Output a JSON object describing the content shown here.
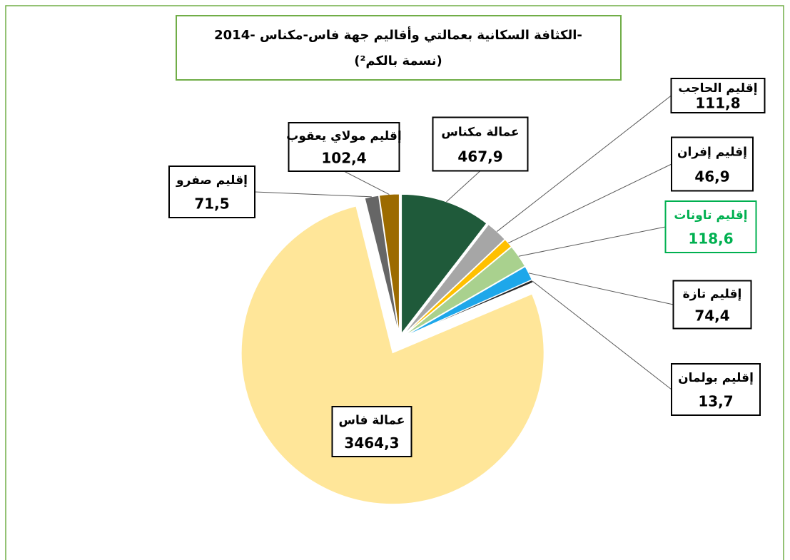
{
  "chart_data": {
    "type": "pie",
    "title": "الكثافة السكانية بعمالتي وأقاليم جهة فاس-مكناس -2014-",
    "subtitle": "(نسمة بالكم²)",
    "categories": [
      "عمالة مكناس",
      "إقليم الحاجب",
      "إقليم إفران",
      "إقليم تاونات",
      "إقليم تازة",
      "إقليم بولمان",
      "عمالة فاس",
      "إقليم صفرو",
      "إقليم مولاي يعقوب"
    ],
    "values": [
      467.9,
      111.8,
      46.9,
      118.6,
      74.4,
      13.7,
      3464.3,
      71.5,
      102.4
    ],
    "value_labels": [
      "467,9",
      "111,8",
      "46,9",
      "118,6",
      "74,4",
      "13,7",
      "3464,3",
      "71,5",
      "102,4"
    ],
    "colors": [
      "#1f5a3a",
      "#a6a6a6",
      "#ffc000",
      "#a9d18e",
      "#1ea7ea",
      "#262626",
      "#ffe699",
      "#666666",
      "#9c6b00"
    ]
  }
}
